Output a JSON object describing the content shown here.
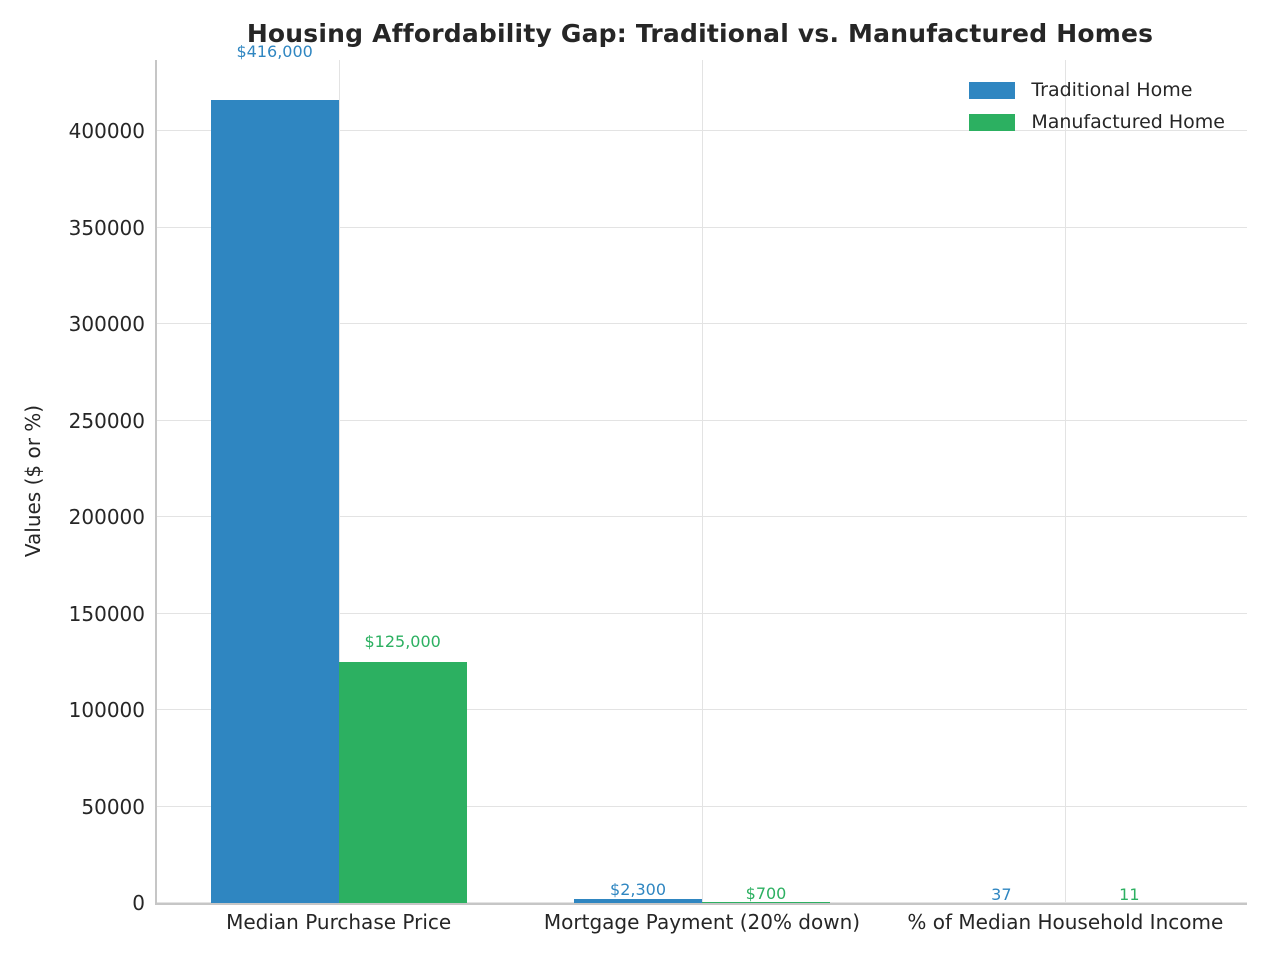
{
  "chart_data": {
    "type": "bar",
    "title": "Housing Affordability Gap: Traditional vs. Manufactured Homes",
    "ylabel": "Values ($ or %)",
    "categories": [
      "Median Purchase Price",
      "Mortgage Payment (20% down)",
      "% of Median Household Income"
    ],
    "series": [
      {
        "name": "Traditional Home",
        "color": "#2f86c1",
        "values": [
          416000,
          2300,
          37
        ],
        "labels": [
          "$416,000",
          "$2,300",
          "37"
        ]
      },
      {
        "name": "Manufactured Home",
        "color": "#2cb061",
        "values": [
          125000,
          700,
          11
        ],
        "labels": [
          "$125,000",
          "$700",
          "11"
        ]
      }
    ],
    "ylim": [
      0,
      436800
    ],
    "yticks": [
      0,
      50000,
      100000,
      150000,
      200000,
      250000,
      300000,
      350000,
      400000
    ],
    "ytick_labels": [
      "0",
      "50000",
      "100000",
      "150000",
      "200000",
      "250000",
      "300000",
      "350000",
      "400000"
    ],
    "grid": true,
    "legend_position": "upper right",
    "text_color": "#262626",
    "grid_color": "#e3e3e3",
    "spine_color": "#c6c6c6",
    "background": "#ffffff"
  }
}
